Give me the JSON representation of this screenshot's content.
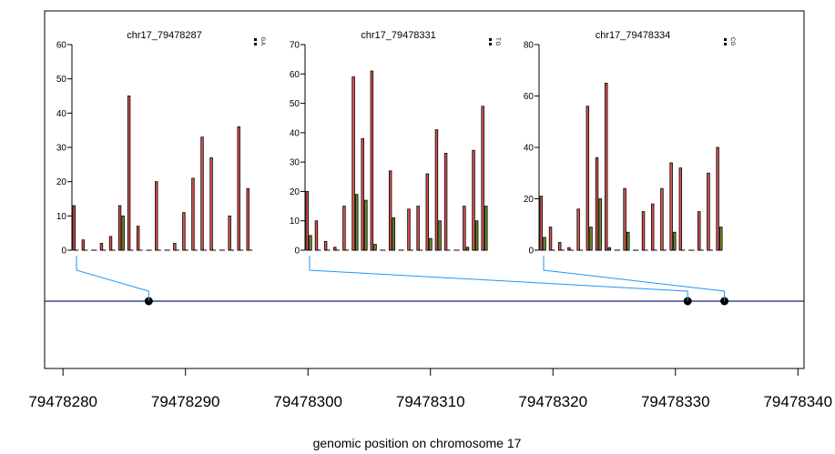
{
  "colors": {
    "ref_bar": "#d9534f",
    "alt_bar": "#6b8e23",
    "track_line": "#1a237e",
    "connector": "#2196f3",
    "snp_point": "#000000"
  },
  "chart_data": {
    "type": "bar",
    "main": {
      "xlabel": "genomic position on chromosome 17",
      "xlim": [
        79478278.5,
        79478340.5
      ],
      "xticks": [
        79478280,
        79478290,
        79478300,
        79478310,
        79478320,
        79478330,
        79478340
      ],
      "xtick_labels": [
        "79478280",
        "79478290",
        "79478300",
        "79478310",
        "79478320",
        "79478330",
        "79478340"
      ],
      "snp_positions": [
        79478287,
        79478331,
        79478334
      ]
    },
    "panels": [
      {
        "title": "chr17_79478287",
        "snp_position": 79478287,
        "legend": [
          "G",
          "A"
        ],
        "ylim": [
          0,
          60
        ],
        "yticks": [
          0,
          10,
          20,
          30,
          40,
          50,
          60
        ],
        "series": [
          {
            "name": "G",
            "values": [
              13,
              3,
              0,
              2,
              4,
              13,
              45,
              7,
              0,
              20,
              0,
              2,
              11,
              21,
              33,
              27,
              0,
              10,
              36,
              18
            ]
          },
          {
            "name": "A",
            "values": [
              0,
              0,
              0,
              0,
              0,
              10,
              0,
              0,
              0,
              0,
              0,
              0,
              0,
              0,
              0,
              0,
              0,
              0,
              0,
              0
            ]
          }
        ]
      },
      {
        "title": "chr17_79478331",
        "snp_position": 79478331,
        "legend": [
          "T",
          "G"
        ],
        "ylim": [
          0,
          70
        ],
        "yticks": [
          0,
          10,
          20,
          30,
          40,
          50,
          60,
          70
        ],
        "series": [
          {
            "name": "T",
            "values": [
              20,
              10,
              3,
              1,
              15,
              59,
              38,
              61,
              0,
              27,
              0,
              14,
              15,
              26,
              41,
              33,
              0,
              15,
              34,
              49
            ]
          },
          {
            "name": "G",
            "values": [
              5,
              0,
              0,
              0,
              0,
              19,
              17,
              2,
              0,
              11,
              0,
              0,
              0,
              4,
              10,
              0,
              0,
              1,
              10,
              15
            ]
          }
        ]
      },
      {
        "title": "chr17_79478334",
        "snp_position": 79478334,
        "legend": [
          "C",
          "G"
        ],
        "ylim": [
          0,
          80
        ],
        "yticks": [
          0,
          20,
          40,
          60,
          80
        ],
        "series": [
          {
            "name": "C",
            "values": [
              21,
              9,
              3,
              1,
              16,
              56,
              36,
              65,
              0,
              24,
              0,
              15,
              18,
              24,
              34,
              32,
              0,
              15,
              30,
              40
            ]
          },
          {
            "name": "G",
            "values": [
              5,
              0,
              0,
              0,
              0,
              9,
              20,
              1,
              0,
              7,
              0,
              0,
              0,
              0,
              7,
              0,
              0,
              0,
              0,
              9
            ]
          }
        ]
      }
    ]
  }
}
